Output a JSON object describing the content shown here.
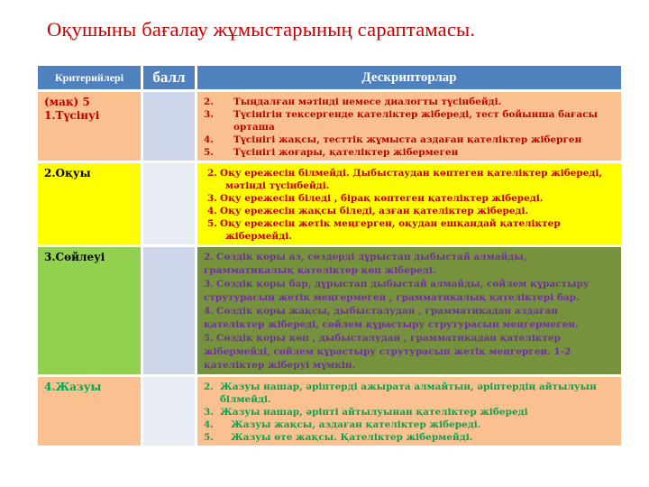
{
  "slide": {
    "title": "Оқушыны бағалау жұмыстарының сараптамасы."
  },
  "colors": {
    "title_text": "#C90000",
    "header_bg": "#4E81BD",
    "header_text": "#FFFFFF",
    "peach": "#FAC090",
    "yellow": "#FFFF00",
    "light_green": "#92D050",
    "olive_green": "#76923C",
    "dark_red": "#C00000",
    "purple": "#7030A0",
    "green_text": "#00A651",
    "score_band_dark": "#CDD6E9",
    "score_band_light": "#E8ECF4"
  },
  "table": {
    "header": {
      "criteria": "Критерийлері",
      "score": "балл",
      "descriptors": "Дескрипторлар"
    },
    "rows": [
      {
        "criteria_lines": [
          "(мак) 5",
          "1.Түсінуі"
        ],
        "score": "",
        "label_bg": "#FAC090",
        "label_color": "#C00000",
        "desc_bg": "#FAC090",
        "desc_color": "#C00000",
        "score_bg": "#CDD6E9",
        "items": [
          {
            "num": "2.",
            "text": "Тыңдалған мәтінді немесе диалогты түсінбейді."
          },
          {
            "num": "3.",
            "text": "Түсінігін тексергенде қателіктер жібереді, тест бойынша  бағасы орташа"
          },
          {
            "num": "4.",
            "text": "Түсінігі жақсы, тесттік жұмыста аздаған  қателіктер жіберген"
          },
          {
            "num": "5.",
            "text": "Түсінігі жоғары, қателіктер жібермеген"
          }
        ]
      },
      {
        "criteria_lines": [
          "2.Оқуы"
        ],
        "score": "",
        "label_bg": "#FFFF00",
        "label_color": "#000000",
        "desc_bg": "#FFFF00",
        "desc_color": "#C00000",
        "score_bg": "#E8ECF4",
        "items": [
          {
            "num": "2.",
            "text": "Оқу ережесін білмейді. Дыбыстаудан көптеген қателіктер жібереді, мәтінді түсінбейді."
          },
          {
            "num": "3.",
            "text": "Оқу ережесін біледі , бірақ көптеген қателіктер жібереді."
          },
          {
            "num": "4.",
            "text": "Оқу ережесін жақсы біледі, азған қателіктер жібереді."
          },
          {
            "num": "5.",
            "text": "Оқу ережесін жетік меңгерген, оқудан ешқандай қателіктер жібермейді."
          }
        ]
      },
      {
        "criteria_lines": [
          "3.Сөйлеуі"
        ],
        "score": "",
        "label_bg": "#92D050",
        "label_color": "#000000",
        "desc_bg": "#76923C",
        "desc_color": "#7030A0",
        "score_bg": "#CDD6E9",
        "items": [
          {
            "num": "2.",
            "text": "Сөздік қоры аз, сөздерді дұрыстап дыбыстай алмайды, грамматикалық қателіктер көп жібереді."
          },
          {
            "num": "3.",
            "text": "Сөздік қоры бар, дұрыстап дыбыстай алмайды, сөйлем құрастыру струтурасын жетік меңгермеген , грамматикалық қателіктері бар."
          },
          {
            "num": "4.",
            "text": "Сөздік қоры жақсы, дыбысталудан , грамматикадан аздаған қателіктер жібереді, сөйлем құрастыру струтурасын  меңгермеген."
          },
          {
            "num": "5.",
            "text": "Сөздік қоры көп , дыбысталудан , грамматикадан  қателіктер жібермейді, сөйлем құрастыру струтурасын  жетік меңгерген. 1-2 қателіктер жіберуі мүмкін."
          }
        ]
      },
      {
        "criteria_lines": [
          "4.Жазуы"
        ],
        "score": "",
        "label_bg": "#FAC090",
        "label_color": "#00A651",
        "desc_bg": "#FAC090",
        "desc_color": "#00A651",
        "score_bg": "#E8ECF4",
        "items": [
          {
            "num": "2.",
            "text": "Жазуы нашар, әріптерді ажырата алмайтын, әріптердің айтылуын білмейді."
          },
          {
            "num": "3.",
            "text": "Жазуы нашар, әріпті айтылуынан қателіктер жібереді"
          },
          {
            "num": "4.",
            "text": "Жазуы жақсы, аздаған қателіктер жібереді."
          },
          {
            "num": "5.",
            "text": "Жазуы өте жақсы. Қателіктер жібермейді."
          }
        ]
      }
    ]
  }
}
